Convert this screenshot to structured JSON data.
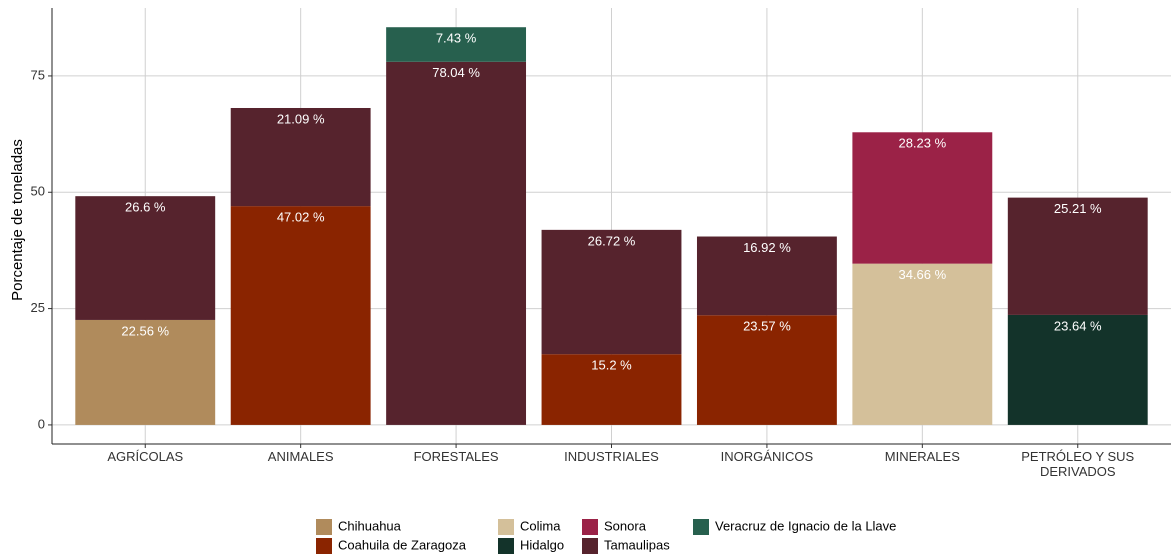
{
  "chart_data": {
    "type": "stacked_bar",
    "y_label": "Porcentaje de toneladas",
    "categories": [
      "AGRÍCOLAS",
      "ANIMALES",
      "FORESTALES",
      "INDUSTRIALES",
      "INORGÁNICOS",
      "MINERALES",
      "PETRÓLEO Y SUS DERIVADOS"
    ],
    "series": [
      {
        "name": "Chihuahua",
        "color": "#b08b5c",
        "values": [
          22.56,
          null,
          null,
          null,
          null,
          null,
          null
        ],
        "value_labels": [
          "22.56 %",
          null,
          null,
          null,
          null,
          null,
          null
        ]
      },
      {
        "name": "Coahuila de Zaragoza",
        "color": "#8a2400",
        "values": [
          null,
          47.02,
          null,
          15.2,
          23.57,
          null,
          null
        ],
        "value_labels": [
          null,
          "47.02 %",
          null,
          "15.2 %",
          "23.57 %",
          null,
          null
        ]
      },
      {
        "name": "Colima",
        "color": "#d4c09a",
        "values": [
          null,
          null,
          null,
          null,
          null,
          34.66,
          null
        ],
        "value_labels": [
          null,
          null,
          null,
          null,
          null,
          "34.66 %",
          null
        ]
      },
      {
        "name": "Hidalgo",
        "color": "#13332a",
        "values": [
          null,
          null,
          null,
          null,
          null,
          null,
          23.64
        ],
        "value_labels": [
          null,
          null,
          null,
          null,
          null,
          null,
          "23.64 %"
        ]
      },
      {
        "name": "Sonora",
        "color": "#9b2247",
        "values": [
          null,
          null,
          null,
          null,
          null,
          28.23,
          null
        ],
        "value_labels": [
          null,
          null,
          null,
          null,
          null,
          "28.23 %",
          null
        ]
      },
      {
        "name": "Tamaulipas",
        "color": "#56232d",
        "values": [
          26.6,
          21.09,
          78.04,
          26.72,
          16.92,
          null,
          25.21
        ],
        "value_labels": [
          "26.6 %",
          "21.09 %",
          "78.04 %",
          "26.72 %",
          "16.92 %",
          null,
          "25.21 %"
        ]
      },
      {
        "name": "Veracruz de Ignacio de la Llave",
        "color": "#27604e",
        "values": [
          null,
          null,
          7.43,
          null,
          null,
          null,
          null
        ],
        "value_labels": [
          null,
          null,
          "7.43 %",
          null,
          null,
          null,
          null
        ]
      }
    ],
    "ylim": [
      -4.1,
      89.6
    ],
    "yticks": [
      0,
      25,
      50,
      75
    ],
    "grid": true,
    "legend": "bottom"
  }
}
